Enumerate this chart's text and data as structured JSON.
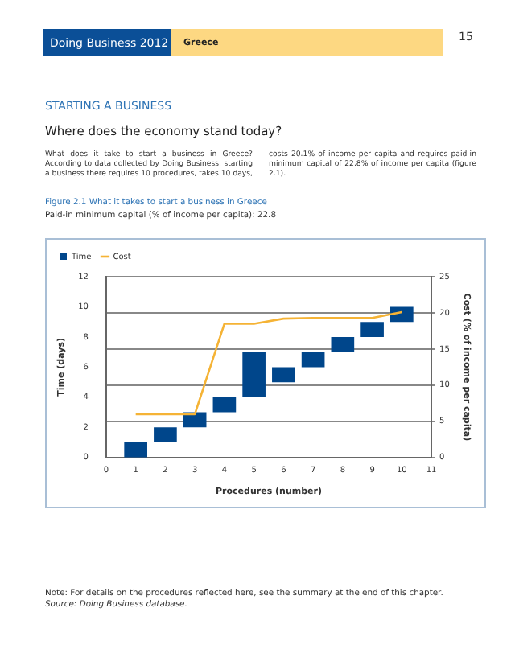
{
  "chart_data": {
    "type": "bar",
    "title": "Figure 2.1 What it takes to start a business in Greece",
    "subtitle": "Paid-in minimum capital (% of income per capita): 22.8",
    "xlabel": "Procedures (number)",
    "ylabel": "Time (days)",
    "y2label": "Cost (% of income per capita)",
    "annotations": [
      "Doing Business 2012",
      "Greece",
      "15",
      "STARTING A BUSINESS",
      "Where does the economy stand today?",
      "What does it take to start a business in Greece? According to data collected by Doing Business, starting a business there requires 10 procedures, takes 10 days, costs 20.1% of income per capita and requires paid-in minimum capital of 22.8% of income per capita (figure 2.1).",
      "Note: For details on the procedures reflected here, see the summary at the end of this chapter.",
      "Source: Doing Business database."
    ],
    "series": [
      {
        "name": "Time",
        "color": "#00468b",
        "x": [
          1,
          2,
          3,
          4,
          5,
          6,
          7,
          8,
          9,
          10
        ],
        "base": [
          0,
          1,
          2,
          3,
          4,
          5,
          6,
          7,
          8,
          9
        ],
        "values": [
          1,
          1,
          1,
          1,
          3,
          1,
          1,
          1,
          1,
          1
        ]
      },
      {
        "name": "Cost",
        "type": "line",
        "axis": "y2",
        "color": "#f5b335",
        "x": [
          1,
          2,
          3,
          4,
          5,
          6,
          7,
          8,
          9,
          10
        ],
        "values": [
          6,
          6,
          6,
          18.5,
          18.5,
          19.2,
          19.3,
          19.3,
          19.3,
          20.1
        ]
      }
    ],
    "xlim": [
      0,
      11
    ],
    "xticks": [
      0,
      1,
      2,
      3,
      4,
      5,
      6,
      7,
      8,
      9,
      10,
      11
    ],
    "ylim": [
      0,
      12
    ],
    "yticks": [
      0,
      2,
      4,
      6,
      8,
      10,
      12
    ],
    "y2lim": [
      0,
      25
    ],
    "y2ticks": [
      0,
      5,
      10,
      15,
      20,
      25
    ],
    "grid": "y",
    "legend": "top left",
    "marker": "none"
  }
}
